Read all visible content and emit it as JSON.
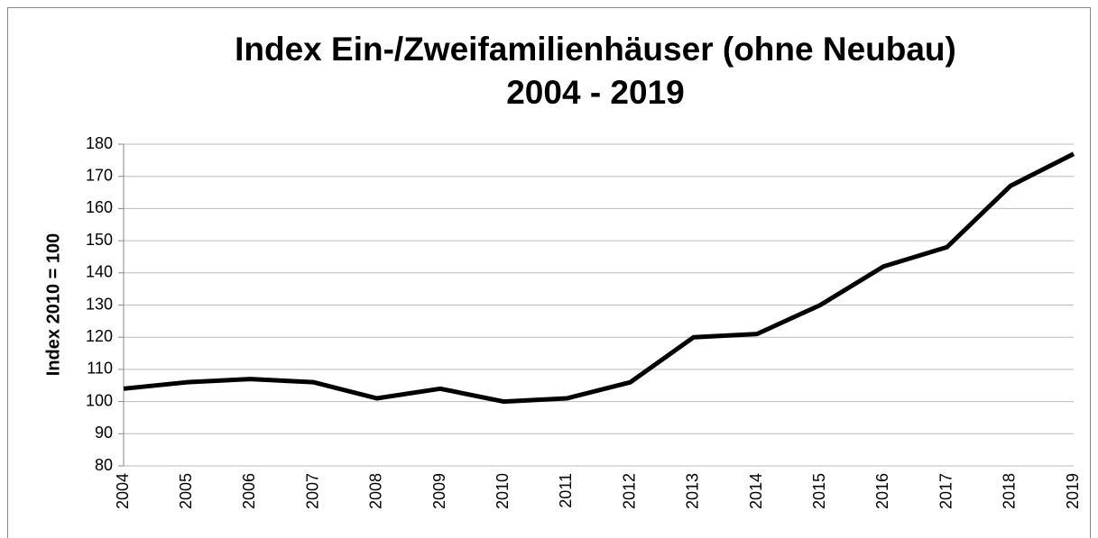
{
  "chart_data": {
    "type": "line",
    "title": [
      "Index Ein-/Zweifamilienhäuser (ohne Neubau)",
      "2004 - 2019"
    ],
    "y_label": "Index 2010 = 100",
    "categories": [
      "2004",
      "2005",
      "2006",
      "2007",
      "2008",
      "2009",
      "2010",
      "2011",
      "2012",
      "2013",
      "2014",
      "2015",
      "2016",
      "2017",
      "2018",
      "2019"
    ],
    "series": [
      {
        "name": "Index",
        "color": "#000000",
        "values": [
          104,
          106,
          107,
          106,
          101,
          104,
          100,
          101,
          106,
          120,
          121,
          130,
          142,
          148,
          167,
          177
        ]
      }
    ],
    "ylim": [
      80,
      180
    ],
    "yticks": [
      80,
      90,
      100,
      110,
      120,
      130,
      140,
      150,
      160,
      170,
      180
    ],
    "grid": true
  }
}
